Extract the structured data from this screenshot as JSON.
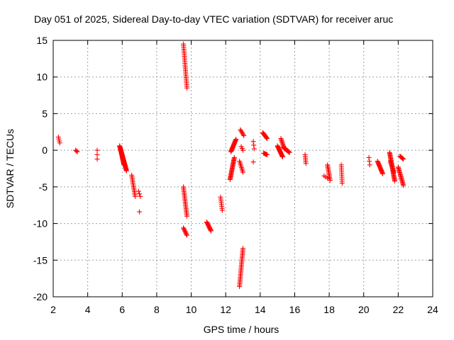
{
  "chart_data": {
    "type": "scatter",
    "title": "Day 051 of 2025, Sidereal Day-to-day VTEC variation (SDTVAR) for receiver aruc",
    "xlabel": "GPS time / hours",
    "ylabel": "SDTVAR / TECUs",
    "xlim": [
      2,
      24
    ],
    "ylim": [
      -20,
      15
    ],
    "xticks": [
      2,
      4,
      6,
      8,
      10,
      12,
      14,
      16,
      18,
      20,
      22,
      24
    ],
    "yticks": [
      -20,
      -15,
      -10,
      -5,
      0,
      5,
      10,
      15
    ],
    "xtick_labels": [
      "2",
      "4",
      "6",
      "8",
      "10",
      "12",
      "14",
      "16",
      "18",
      "20",
      "22",
      "24"
    ],
    "ytick_labels": [
      "-20",
      "-15",
      "-10",
      "-5",
      "0",
      "5",
      "10",
      "15"
    ],
    "grid": true,
    "marker": "+",
    "color": "#ff0000",
    "segments": [
      {
        "x0": 2.3,
        "x1": 2.38,
        "y0": 1.8,
        "y1": 1.0,
        "n": 4
      },
      {
        "x0": 3.3,
        "x1": 3.4,
        "y0": 0.0,
        "y1": -0.2,
        "n": 3
      },
      {
        "x0": 4.55,
        "x1": 4.55,
        "y0": 0.0,
        "y1": -1.2,
        "n": 3
      },
      {
        "x0": 5.85,
        "x1": 6.25,
        "y0": 0.6,
        "y1": -2.8,
        "n": 40
      },
      {
        "x0": 5.9,
        "x1": 6.1,
        "y0": 0.2,
        "y1": -2.0,
        "n": 20
      },
      {
        "x0": 6.55,
        "x1": 6.75,
        "y0": -3.4,
        "y1": -6.3,
        "n": 14
      },
      {
        "x0": 6.95,
        "x1": 7.05,
        "y0": -5.6,
        "y1": -6.3,
        "n": 3
      },
      {
        "x0": 7.0,
        "x1": 7.0,
        "y0": -8.4,
        "y1": -8.4,
        "n": 1
      },
      {
        "x0": 9.55,
        "x1": 9.75,
        "y0": 14.5,
        "y1": 8.5,
        "n": 26
      },
      {
        "x0": 9.55,
        "x1": 9.75,
        "y0": -5.0,
        "y1": -9.0,
        "n": 20
      },
      {
        "x0": 9.55,
        "x1": 9.75,
        "y0": -10.6,
        "y1": -11.6,
        "n": 8
      },
      {
        "x0": 10.9,
        "x1": 11.15,
        "y0": -9.8,
        "y1": -11.0,
        "n": 12
      },
      {
        "x0": 11.7,
        "x1": 11.8,
        "y0": -6.4,
        "y1": -8.2,
        "n": 8
      },
      {
        "x0": 12.25,
        "x1": 12.5,
        "y0": -4.0,
        "y1": -1.0,
        "n": 24
      },
      {
        "x0": 12.3,
        "x1": 12.6,
        "y0": -0.2,
        "y1": 1.5,
        "n": 18
      },
      {
        "x0": 12.85,
        "x1": 13.05,
        "y0": 2.8,
        "y1": 2.0,
        "n": 6
      },
      {
        "x0": 12.8,
        "x1": 13.0,
        "y0": -1.5,
        "y1": -3.0,
        "n": 8
      },
      {
        "x0": 12.9,
        "x1": 13.0,
        "y0": 0.5,
        "y1": 0.0,
        "n": 3
      },
      {
        "x0": 12.8,
        "x1": 13.0,
        "y0": -18.6,
        "y1": -13.4,
        "n": 26
      },
      {
        "x0": 13.6,
        "x1": 13.65,
        "y0": 1.2,
        "y1": 0.2,
        "n": 3
      },
      {
        "x0": 13.6,
        "x1": 13.6,
        "y0": -1.6,
        "y1": -1.6,
        "n": 1
      },
      {
        "x0": 14.15,
        "x1": 14.4,
        "y0": 2.4,
        "y1": 1.6,
        "n": 10
      },
      {
        "x0": 14.2,
        "x1": 14.4,
        "y0": -0.4,
        "y1": -0.6,
        "n": 6
      },
      {
        "x0": 15.0,
        "x1": 15.3,
        "y0": 0.6,
        "y1": -0.9,
        "n": 18
      },
      {
        "x0": 15.2,
        "x1": 15.4,
        "y0": 1.6,
        "y1": 0.2,
        "n": 10
      },
      {
        "x0": 15.35,
        "x1": 15.7,
        "y0": 0.4,
        "y1": -0.3,
        "n": 16
      },
      {
        "x0": 16.6,
        "x1": 16.65,
        "y0": -0.6,
        "y1": -1.8,
        "n": 6
      },
      {
        "x0": 17.7,
        "x1": 17.9,
        "y0": -3.5,
        "y1": -3.8,
        "n": 3
      },
      {
        "x0": 17.9,
        "x1": 18.05,
        "y0": -2.0,
        "y1": -4.1,
        "n": 12
      },
      {
        "x0": 18.7,
        "x1": 18.75,
        "y0": -2.0,
        "y1": -4.5,
        "n": 10
      },
      {
        "x0": 20.3,
        "x1": 20.35,
        "y0": -1.0,
        "y1": -2.0,
        "n": 3
      },
      {
        "x0": 20.8,
        "x1": 21.1,
        "y0": -1.5,
        "y1": -3.2,
        "n": 16
      },
      {
        "x0": 21.5,
        "x1": 21.8,
        "y0": -0.3,
        "y1": -4.2,
        "n": 30
      },
      {
        "x0": 21.55,
        "x1": 21.75,
        "y0": -1.5,
        "y1": -3.0,
        "n": 12
      },
      {
        "x0": 22.0,
        "x1": 22.3,
        "y0": -2.3,
        "y1": -4.8,
        "n": 18
      },
      {
        "x0": 22.1,
        "x1": 22.3,
        "y0": -0.8,
        "y1": -1.2,
        "n": 6
      }
    ]
  }
}
